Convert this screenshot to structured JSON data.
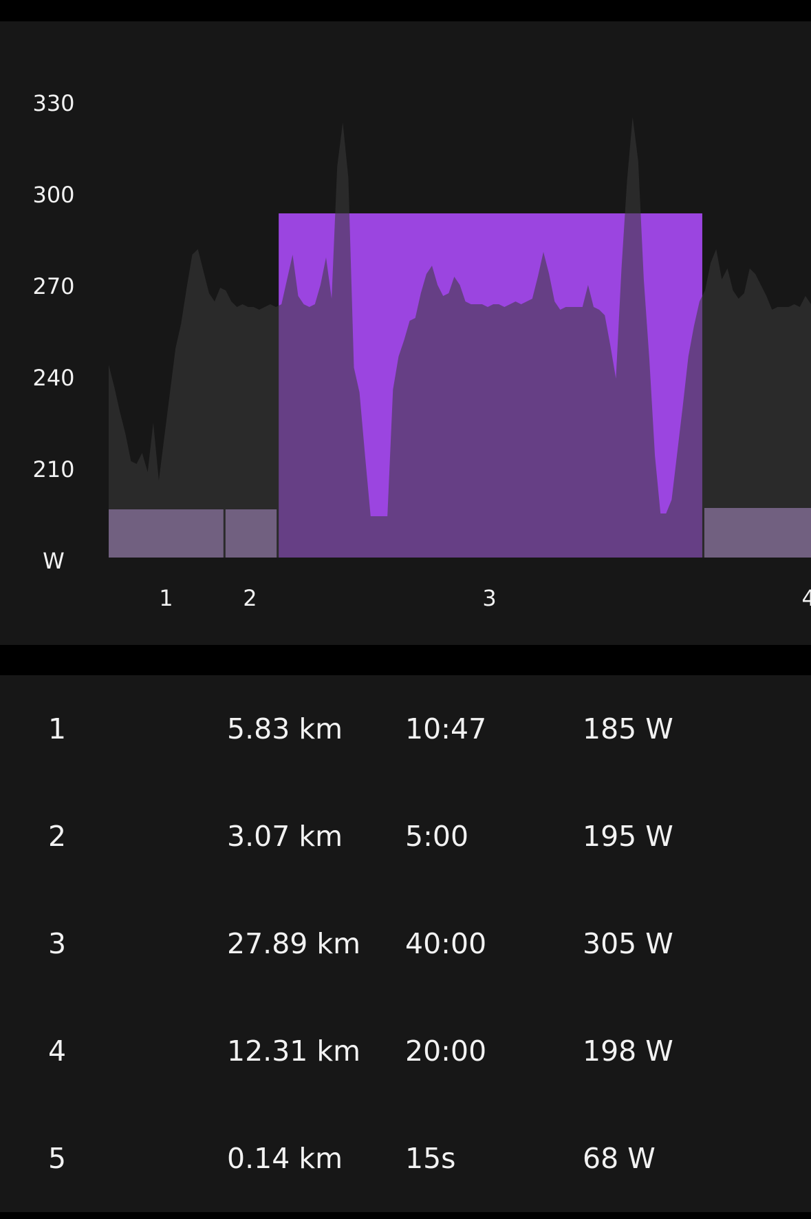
{
  "chart_data": {
    "type": "area",
    "y_ticks": [
      "330",
      "300",
      "270",
      "240",
      "210",
      "W"
    ],
    "ylim": [
      180,
      340
    ],
    "power_samples_w": [
      250,
      242,
      233,
      225,
      215,
      214,
      218,
      211,
      229,
      208,
      224,
      240,
      256,
      265,
      278,
      290,
      292,
      284,
      276,
      273,
      278,
      277,
      273,
      271,
      272,
      271,
      271,
      270,
      271,
      272,
      271,
      272,
      281,
      290,
      275,
      272,
      271,
      272,
      279,
      289,
      274,
      322,
      338,
      318,
      249,
      240,
      217,
      195,
      195,
      195,
      195,
      241,
      253,
      259,
      266,
      267,
      276,
      283,
      286,
      279,
      275,
      276,
      282,
      279,
      273,
      272,
      272,
      272,
      271,
      272,
      272,
      271,
      272,
      273,
      272,
      273,
      274,
      282,
      291,
      283,
      273,
      270,
      271,
      271,
      271,
      271,
      279,
      271,
      270,
      268,
      257,
      245,
      285,
      317,
      340,
      324,
      281,
      252,
      217,
      196,
      196,
      201,
      218,
      235,
      253,
      264,
      273,
      277,
      287,
      292,
      281,
      285,
      277,
      274,
      276,
      285,
      283,
      279,
      275,
      270,
      271,
      271,
      271,
      272,
      271,
      275,
      272
    ],
    "laps": [
      {
        "label": "1",
        "avg_power_w": 185,
        "duration_s": 647
      },
      {
        "label": "2",
        "avg_power_w": 195,
        "duration_s": 300
      },
      {
        "label": "3",
        "avg_power_w": 305,
        "duration_s": 2400
      },
      {
        "label": "4",
        "avg_power_w": 198,
        "duration_s": 1200
      },
      {
        "label": "5",
        "avg_power_w": 68,
        "duration_s": 15
      }
    ],
    "colors": {
      "background": "#171717",
      "power_area": "#2a2a2a",
      "lap": "#b38fd6",
      "lap_selected": "#9b45e0"
    },
    "selected_lap": "3",
    "x_view_end_s": 3960
  },
  "lap_table": [
    {
      "lap": "1",
      "distance": "5.83 km",
      "time": "10:47",
      "power": "185 W"
    },
    {
      "lap": "2",
      "distance": "3.07 km",
      "time": "5:00",
      "power": "195 W"
    },
    {
      "lap": "3",
      "distance": "27.89 km",
      "time": "40:00",
      "power": "305 W"
    },
    {
      "lap": "4",
      "distance": "12.31 km",
      "time": "20:00",
      "power": "198 W"
    },
    {
      "lap": "5",
      "distance": "0.14 km",
      "time": "15s",
      "power": "68 W"
    }
  ]
}
